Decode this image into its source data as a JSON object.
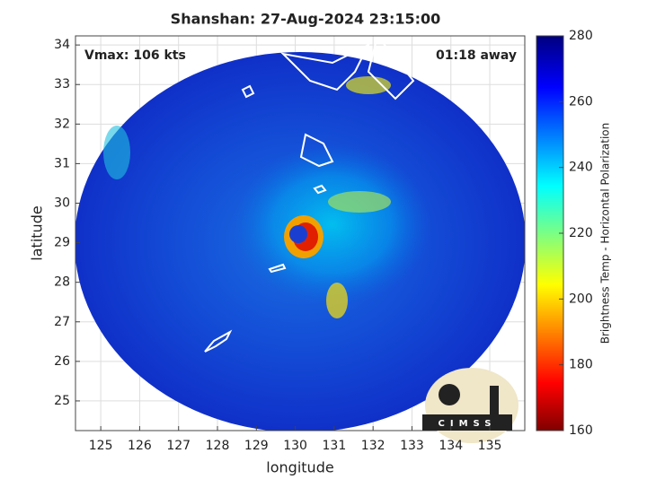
{
  "chart_data": {
    "type": "map",
    "title": "Shanshan: 27-Aug-2024 23:15:00",
    "annotations": [
      "Vmax: 106 kts",
      "01:18 away"
    ],
    "x_label": "longitude",
    "y_label": "latitude",
    "xlim": [
      124.35,
      135.9
    ],
    "ylim": [
      24.25,
      34.23
    ],
    "xticks": [
      125,
      126,
      127,
      128,
      129,
      130,
      131,
      132,
      133,
      134,
      135
    ],
    "yticks": [
      25,
      26,
      27,
      28,
      29,
      30,
      31,
      32,
      33,
      34
    ],
    "grid": true,
    "colorbar": {
      "label": "Brightness Temp - Horizontal Polarization",
      "lim": [
        160,
        280
      ],
      "ticks": [
        160,
        180,
        200,
        220,
        240,
        260,
        280
      ]
    },
    "logo": "CIMSS"
  }
}
